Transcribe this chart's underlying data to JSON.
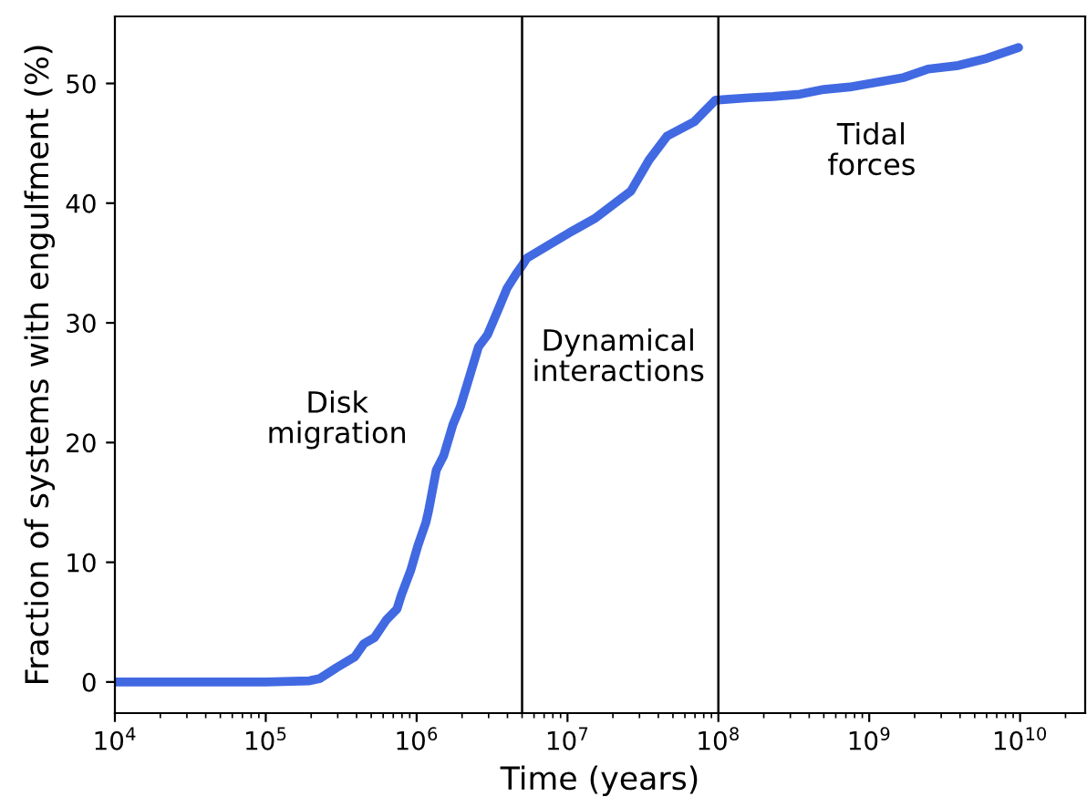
{
  "chart_data": {
    "type": "line",
    "xlabel": "Time (years)",
    "ylabel": "Fraction of systems with engulfment (%)",
    "log": "x",
    "xlim": [
      10000,
      27000000000
    ],
    "ylim": [
      -2.6,
      55.6
    ],
    "xticks": [
      {
        "value": 10000,
        "label": "10$^{4}$"
      },
      {
        "value": 100000,
        "label": "10$^{5}$"
      },
      {
        "value": 1000000,
        "label": "10$^{6}$"
      },
      {
        "value": 10000000,
        "label": "10$^{7}$"
      },
      {
        "value": 100000000,
        "label": "10$^{8}$"
      },
      {
        "value": 1000000000,
        "label": "10$^{9}$"
      },
      {
        "value": 10000000000,
        "label": "10$^{10}$"
      }
    ],
    "yticks": [
      0,
      10,
      20,
      30,
      40,
      50
    ],
    "grid": false,
    "marker": "none",
    "line_style": "solid",
    "series": [
      {
        "color": "#4169e1",
        "x": [
          10000,
          100000,
          195000,
          229000,
          295000,
          389000,
          447000,
          525000,
          631000,
          741000,
          794000,
          912000,
          1020000,
          1150000,
          1200000,
          1350000,
          1510000,
          1740000,
          1950000,
          2240000,
          2570000,
          2950000,
          3470000,
          3980000,
          4570000,
          5010000,
          5370000,
          10200000,
          15100000,
          26300000,
          34700000,
          45700000,
          69200000,
          95500000,
          158000000,
          229000000,
          347000000,
          501000000,
          741000000,
          1700000000,
          2450000000,
          3890000000,
          6030000000,
          9770000000
        ],
        "values": [
          0,
          0,
          0.1,
          0.3,
          1.2,
          2.1,
          3.2,
          3.7,
          5.2,
          6.1,
          7.3,
          9.3,
          11.4,
          13.3,
          14.3,
          17.7,
          18.9,
          21.5,
          23.0,
          25.5,
          28.0,
          29.0,
          31.1,
          32.9,
          34.1,
          34.8,
          35.4,
          37.5,
          38.7,
          41.0,
          43.6,
          45.6,
          46.8,
          48.6,
          48.8,
          48.9,
          49.1,
          49.5,
          49.7,
          50.5,
          51.2,
          51.5,
          52.1,
          53.0
        ]
      }
    ],
    "ref_lines": [
      {
        "axis": "x",
        "value": 5000000,
        "color": "#000000"
      },
      {
        "axis": "x",
        "value": 100000000,
        "color": "#000000"
      }
    ],
    "annotations": [
      "Disk\nmigration",
      "Dynamical\ninteractions",
      "Tidal\nforces"
    ]
  }
}
